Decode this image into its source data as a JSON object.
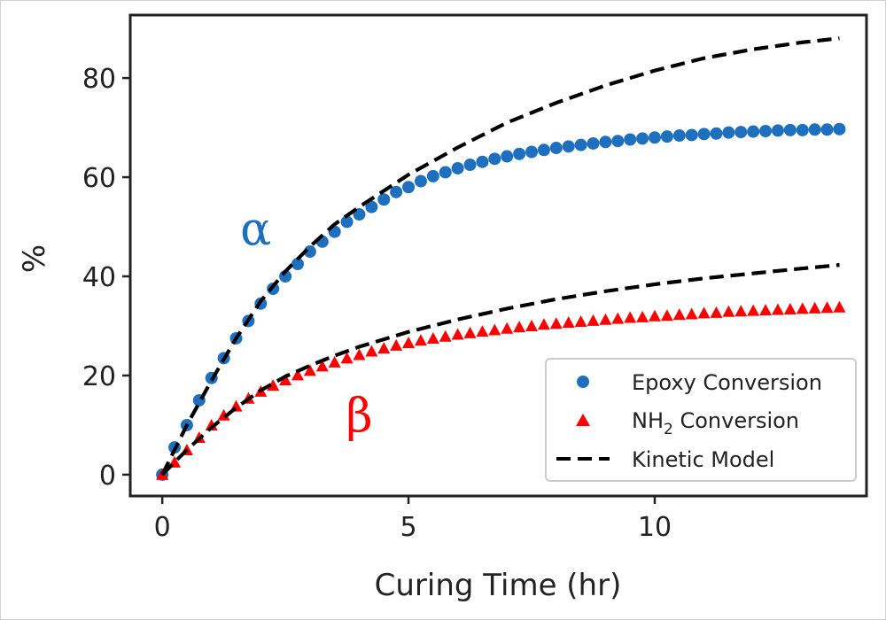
{
  "chart_data": {
    "type": "scatter",
    "xlabel": "Curing Time (hr)",
    "ylabel": "%",
    "xlim": [
      -0.65,
      14.3
    ],
    "ylim": [
      -4.3,
      92.7
    ],
    "xticks": [
      0,
      5,
      10
    ],
    "yticks": [
      0,
      20,
      40,
      60,
      80
    ],
    "grid": false,
    "legend_position": "bottom-right",
    "legend": {
      "epoxy": "Epoxy Conversion",
      "nh2_main": "NH",
      "nh2_sub": "2",
      "nh2_rest": " Conversion",
      "model": "Kinetic Model"
    },
    "colors": {
      "epoxy": "#1f6fbf",
      "nh2": "#ff0000",
      "model": "#000000",
      "axes": "#222222"
    },
    "annotations": [
      {
        "text": "α",
        "x": 1.9,
        "y": 49.6,
        "color": "#1f6fbf"
      },
      {
        "text": "β",
        "x": 4.0,
        "y": 12.0,
        "color": "#ff0000"
      }
    ],
    "series": [
      {
        "name": "Epoxy Conversion",
        "marker": "circle",
        "color": "#1f6fbf",
        "x": [
          0,
          0.25,
          0.5,
          0.75,
          1,
          1.25,
          1.5,
          1.75,
          2,
          2.25,
          2.5,
          2.75,
          3,
          3.25,
          3.5,
          3.75,
          4,
          4.25,
          4.5,
          4.75,
          5,
          5.25,
          5.5,
          5.75,
          6,
          6.25,
          6.5,
          6.75,
          7,
          7.25,
          7.5,
          7.75,
          8,
          8.25,
          8.5,
          8.75,
          9,
          9.25,
          9.5,
          9.75,
          10,
          10.25,
          10.5,
          10.75,
          11,
          11.25,
          11.5,
          11.75,
          12,
          12.25,
          12.5,
          12.75,
          13,
          13.25,
          13.5,
          13.75
        ],
        "y": [
          0,
          5.5,
          10,
          15,
          19.5,
          23.5,
          27.5,
          31,
          34.5,
          37.5,
          40,
          42.5,
          45,
          47,
          49,
          51,
          52.5,
          54,
          55.5,
          57,
          58,
          59.2,
          60.2,
          61,
          61.8,
          62.5,
          63.1,
          63.7,
          64.2,
          64.7,
          65.1,
          65.5,
          65.9,
          66.2,
          66.5,
          66.8,
          67.1,
          67.3,
          67.6,
          67.8,
          68,
          68.2,
          68.4,
          68.5,
          68.7,
          68.8,
          69,
          69.1,
          69.2,
          69.3,
          69.4,
          69.5,
          69.5,
          69.6,
          69.6,
          69.7
        ]
      },
      {
        "name": "NH2 Conversion",
        "marker": "triangle",
        "color": "#ff0000",
        "x": [
          0,
          0.25,
          0.5,
          0.75,
          1,
          1.25,
          1.5,
          1.75,
          2,
          2.25,
          2.5,
          2.75,
          3,
          3.25,
          3.5,
          3.75,
          4,
          4.25,
          4.5,
          4.75,
          5,
          5.25,
          5.5,
          5.75,
          6,
          6.25,
          6.5,
          6.75,
          7,
          7.25,
          7.5,
          7.75,
          8,
          8.25,
          8.5,
          8.75,
          9,
          9.25,
          9.5,
          9.75,
          10,
          10.25,
          10.5,
          10.75,
          11,
          11.25,
          11.5,
          11.75,
          12,
          12.25,
          12.5,
          12.75,
          13,
          13.25,
          13.5,
          13.75
        ],
        "y": [
          0,
          2.5,
          5,
          7.5,
          10,
          12,
          13.8,
          15.4,
          16.8,
          18,
          19.1,
          20.1,
          21,
          21.9,
          22.7,
          23.5,
          24.2,
          24.9,
          25.5,
          26.1,
          26.6,
          27.1,
          27.5,
          27.9,
          28.3,
          28.6,
          28.9,
          29.2,
          29.5,
          29.8,
          30,
          30.3,
          30.5,
          30.7,
          30.9,
          31.1,
          31.3,
          31.5,
          31.7,
          31.8,
          32,
          32.1,
          32.3,
          32.4,
          32.6,
          32.7,
          32.9,
          33,
          33.1,
          33.2,
          33.3,
          33.4,
          33.5,
          33.6,
          33.7,
          33.8
        ]
      },
      {
        "name": "Kinetic Model",
        "marker": "dashed-line",
        "color": "#000000",
        "x": [
          0,
          0.5,
          1,
          1.5,
          2,
          2.5,
          3,
          3.5,
          4,
          5,
          6,
          7,
          8,
          9,
          10,
          11,
          12,
          13,
          13.75
        ],
        "y": [
          0,
          10,
          19,
          27.5,
          35,
          41,
          46,
          50.5,
          54,
          60.5,
          66,
          71,
          75,
          78.5,
          81.5,
          84,
          85.8,
          87.2,
          88
        ]
      },
      {
        "name": "Kinetic Model",
        "marker": "dashed-line",
        "color": "#000000",
        "x": [
          0,
          0.5,
          1,
          1.5,
          2,
          2.5,
          3,
          3.5,
          4,
          5,
          6,
          7,
          8,
          9,
          10,
          11,
          12,
          13,
          13.75
        ],
        "y": [
          0,
          5,
          9.5,
          13.5,
          17,
          19.8,
          22,
          24,
          25.8,
          28.8,
          31.3,
          33.5,
          35.4,
          37,
          38.4,
          39.6,
          40.6,
          41.6,
          42.3
        ]
      }
    ]
  }
}
